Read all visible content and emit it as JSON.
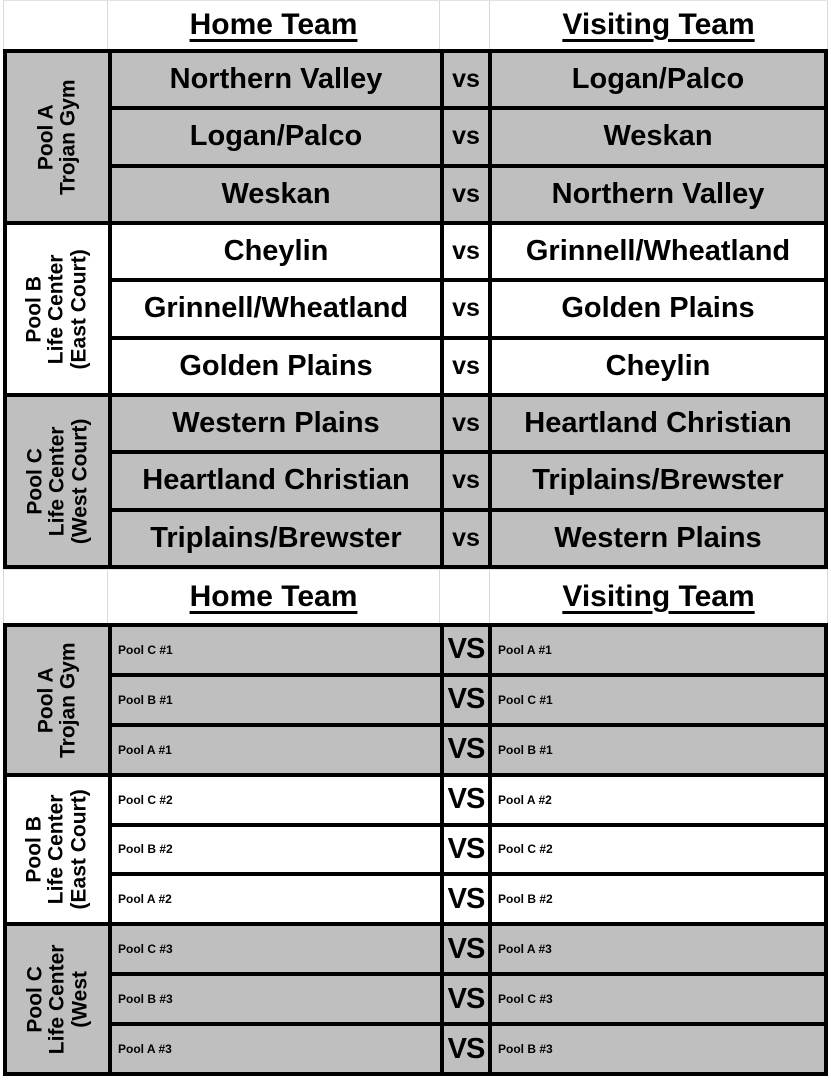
{
  "colors": {
    "cell_gray": "#BFBFBF",
    "border": "#000000",
    "gridline": "#D9D9D9"
  },
  "round1": {
    "header": {
      "home_label": "Home Team",
      "visiting_label": "Visiting Team"
    },
    "vs_label": "vs",
    "pools": [
      {
        "name": "pool-a",
        "label_lines": [
          "Pool A",
          "Trojan Gym"
        ],
        "shade": "gray",
        "matches": [
          {
            "home": "Northern Valley",
            "visiting": "Logan/Palco"
          },
          {
            "home": "Logan/Palco",
            "visiting": "Weskan"
          },
          {
            "home": "Weskan",
            "visiting": "Northern Valley"
          }
        ]
      },
      {
        "name": "pool-b",
        "label_lines": [
          "Pool B",
          "Life Center",
          "(East Court)"
        ],
        "shade": "white",
        "matches": [
          {
            "home": "Cheylin",
            "visiting": "Grinnell/Wheatland"
          },
          {
            "home": "Grinnell/Wheatland",
            "visiting": "Golden Plains"
          },
          {
            "home": "Golden Plains",
            "visiting": "Cheylin"
          }
        ]
      },
      {
        "name": "pool-c",
        "label_lines": [
          "Pool C",
          "Life Center",
          "(West Court)"
        ],
        "shade": "gray",
        "matches": [
          {
            "home": "Western Plains",
            "visiting": "Heartland Christian"
          },
          {
            "home": "Heartland Christian",
            "visiting": "Triplains/Brewster"
          },
          {
            "home": "Triplains/Brewster",
            "visiting": "Western Plains"
          }
        ]
      }
    ]
  },
  "round2": {
    "header": {
      "home_label": "Home Team",
      "visiting_label": "Visiting Team"
    },
    "vs_label": "VS",
    "pools": [
      {
        "name": "pool-a",
        "label_lines": [
          "Pool A",
          "Trojan Gym"
        ],
        "shade": "gray",
        "matches": [
          {
            "home": "Pool C #1",
            "visiting": "Pool A #1"
          },
          {
            "home": "Pool B #1",
            "visiting": "Pool C #1"
          },
          {
            "home": "Pool A #1",
            "visiting": "Pool B #1"
          }
        ]
      },
      {
        "name": "pool-b",
        "label_lines": [
          "Pool B",
          "Life Center",
          "(East Court)"
        ],
        "shade": "white",
        "matches": [
          {
            "home": "Pool C #2",
            "visiting": "Pool A #2"
          },
          {
            "home": "Pool B #2",
            "visiting": "Pool C #2"
          },
          {
            "home": "Pool A #2",
            "visiting": "Pool B #2"
          }
        ]
      },
      {
        "name": "pool-c",
        "label_lines": [
          "Pool C",
          "Life Center",
          "(West"
        ],
        "shade": "gray",
        "matches": [
          {
            "home": "Pool C #3",
            "visiting": "Pool A #3"
          },
          {
            "home": "Pool B #3",
            "visiting": "Pool C #3"
          },
          {
            "home": "Pool A #3",
            "visiting": "Pool B #3"
          }
        ]
      }
    ]
  }
}
